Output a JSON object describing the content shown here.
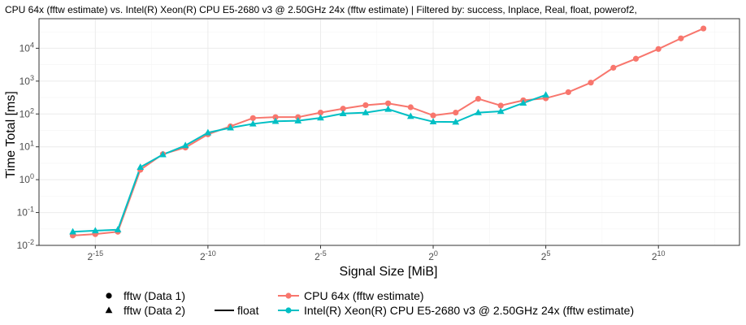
{
  "chart_data": {
    "type": "line",
    "title": "CPU 64x (fftw estimate) vs. Intel(R) Xeon(R) CPU E5-2680 v3 @ 2.50GHz 24x (fftw estimate) | Filtered by: success, Inplace, Real, float, powerof2,",
    "xlabel": "Signal Size [MiB]",
    "ylabel": "Time Total [ms]",
    "x_scale": "log2",
    "y_scale": "log10",
    "xlim_log2": [
      -17.5,
      13.6
    ],
    "ylim_log10": [
      -2.0,
      4.9
    ],
    "x_ticks": [
      {
        "exp": -15,
        "base": "2",
        "sup": "-15"
      },
      {
        "exp": -10,
        "base": "2",
        "sup": "-10"
      },
      {
        "exp": -5,
        "base": "2",
        "sup": "-5"
      },
      {
        "exp": 0,
        "base": "2",
        "sup": "0"
      },
      {
        "exp": 5,
        "base": "2",
        "sup": "5"
      },
      {
        "exp": 10,
        "base": "2",
        "sup": "10"
      }
    ],
    "y_ticks": [
      {
        "exp": -2,
        "base": "10",
        "sup": "-2"
      },
      {
        "exp": -1,
        "base": "10",
        "sup": "-1"
      },
      {
        "exp": 0,
        "base": "10",
        "sup": "0"
      },
      {
        "exp": 1,
        "base": "10",
        "sup": "1"
      },
      {
        "exp": 2,
        "base": "10",
        "sup": "2"
      },
      {
        "exp": 3,
        "base": "10",
        "sup": "3"
      },
      {
        "exp": 4,
        "base": "10",
        "sup": "4"
      }
    ],
    "series": [
      {
        "name": "CPU 64x (fftw estimate)",
        "color": "#F8766D",
        "marker": "circle",
        "x_log2": [
          -16,
          -15,
          -14,
          -13,
          -12,
          -11,
          -10,
          -9,
          -8,
          -7,
          -6,
          -5,
          -4,
          -3,
          -2,
          -1,
          0,
          1,
          2,
          3,
          4,
          5,
          6,
          7,
          8,
          9,
          10,
          11,
          12
        ],
        "y": [
          0.02,
          0.022,
          0.026,
          2.0,
          6.0,
          9.5,
          24,
          42,
          75,
          80,
          80,
          110,
          145,
          185,
          210,
          160,
          90,
          110,
          290,
          180,
          260,
          300,
          460,
          900,
          2550,
          4800,
          9500,
          20000,
          40000
        ]
      },
      {
        "name": "Intel(R) Xeon(R) CPU E5-2680 v3 @ 2.50GHz 24x (fftw estimate)",
        "color": "#00BFC4",
        "marker": "triangle",
        "x_log2": [
          -16,
          -15,
          -14,
          -13,
          -12,
          -11,
          -10,
          -9,
          -8,
          -7,
          -6,
          -5,
          -4,
          -3,
          -2,
          -1,
          0,
          1,
          2,
          3,
          4,
          5
        ],
        "y": [
          0.026,
          0.028,
          0.03,
          2.4,
          5.8,
          11,
          27,
          38,
          50,
          60,
          62,
          76,
          103,
          110,
          140,
          85,
          58,
          57,
          110,
          120,
          215,
          380
        ]
      }
    ],
    "legend": {
      "placement": "bottom",
      "shape_items": [
        {
          "label": "fftw (Data 1)",
          "marker": "circle"
        },
        {
          "label": "fftw (Data 2)",
          "marker": "triangle"
        }
      ],
      "linetype_items": [
        {
          "label": "float"
        }
      ],
      "color_items": [
        {
          "label": "CPU 64x (fftw estimate)",
          "color": "#F8766D"
        },
        {
          "label": "Intel(R) Xeon(R) CPU E5-2680 v3 @ 2.50GHz 24x (fftw estimate)",
          "color": "#00BFC4"
        }
      ]
    },
    "grid": true
  }
}
